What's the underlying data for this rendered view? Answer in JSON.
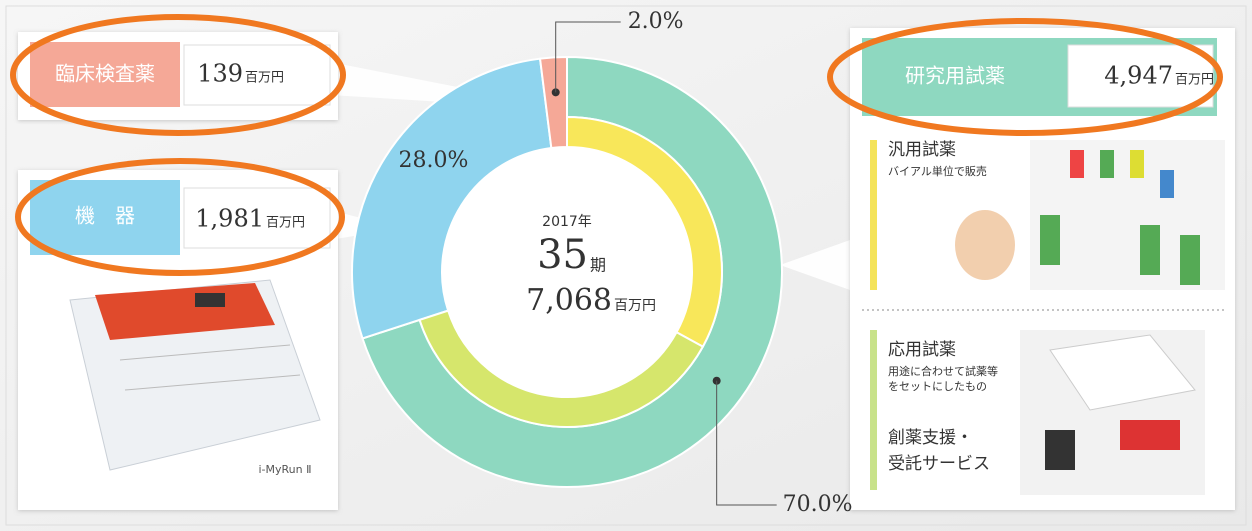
{
  "chart_data": {
    "type": "donut",
    "categories": [
      "研究用試薬",
      "機　器",
      "臨床検査薬"
    ],
    "values": [
      70.0,
      28.0,
      2.0
    ],
    "value_labels": [
      "70.0%",
      "28.0%",
      "2.0%"
    ],
    "colors": [
      "#8ed8c0",
      "#8fd4ee",
      "#f5a897"
    ],
    "amounts": [
      "4,947",
      "1,981",
      "139"
    ],
    "amount_unit": "百万円",
    "inner_values": [
      33,
      37
    ],
    "inner_colors": [
      "#f8e75a",
      "#d6e66c"
    ],
    "center": {
      "year": "2017年",
      "period": "35",
      "period_suffix": "期",
      "total": "7,068",
      "total_unit": "百万円"
    }
  },
  "product_caption": "i-MyRun Ⅱ",
  "sections": [
    {
      "title": "汎用試薬",
      "desc": [
        "バイアル単位で販売"
      ]
    },
    {
      "title": "応用試薬",
      "desc": [
        "用途に合わせて試薬等",
        "をセットにしたもの"
      ]
    },
    {
      "title": [
        "創薬支援・",
        "受託サービス"
      ]
    }
  ]
}
